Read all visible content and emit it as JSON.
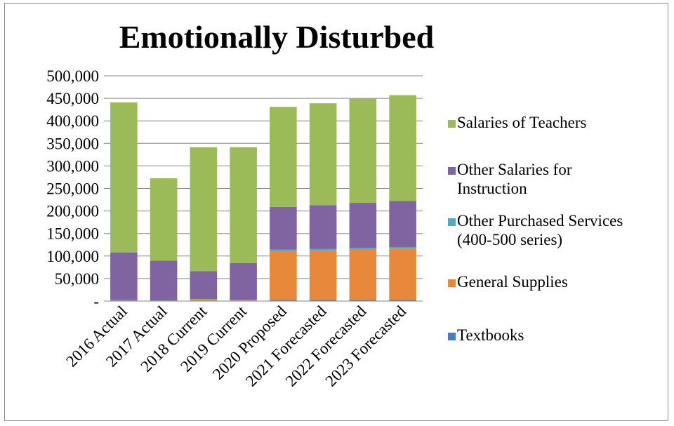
{
  "chart_data": {
    "type": "bar",
    "stacked": true,
    "title": "Emotionally Disturbed",
    "xlabel": "",
    "ylabel": "",
    "ylim": [
      0,
      500000
    ],
    "yticks": [
      "-",
      "50,000",
      "100,000",
      "150,000",
      "200,000",
      "250,000",
      "300,000",
      "350,000",
      "400,000",
      "450,000",
      "500,000"
    ],
    "categories": [
      "2016 Actual",
      "2017 Actual",
      "2018 Current",
      "2019 Current",
      "2020 Proposed",
      "2021 Forecasted",
      "2022 Forecasted",
      "2023 Forecasted"
    ],
    "grid": true,
    "legend_position": "right",
    "series": [
      {
        "name": "Textbooks",
        "color": "#4a7ebb",
        "values": [
          1500,
          500,
          1000,
          1000,
          2500,
          2500,
          2500,
          2500
        ]
      },
      {
        "name": "General Supplies",
        "color": "#e8883a",
        "values": [
          1000,
          500,
          3000,
          1000,
          108000,
          110000,
          112000,
          114000
        ]
      },
      {
        "name": "Other Purchased Services (400-500 series)",
        "legend_lines": [
          "Other Purchased Services",
          "(400-500 series)"
        ],
        "color": "#4bacc6",
        "values": [
          500,
          500,
          500,
          500,
          3500,
          3500,
          3500,
          3500
        ]
      },
      {
        "name": "Other Salaries for Instruction",
        "legend_lines": [
          "Other Salaries for",
          "Instruction"
        ],
        "color": "#8064a2",
        "values": [
          105000,
          88000,
          62000,
          82000,
          95000,
          97000,
          100000,
          102000
        ]
      },
      {
        "name": "Salaries of Teachers",
        "color": "#9bbb59",
        "values": [
          333000,
          183000,
          275000,
          257000,
          222000,
          226000,
          231000,
          235000
        ]
      }
    ]
  }
}
